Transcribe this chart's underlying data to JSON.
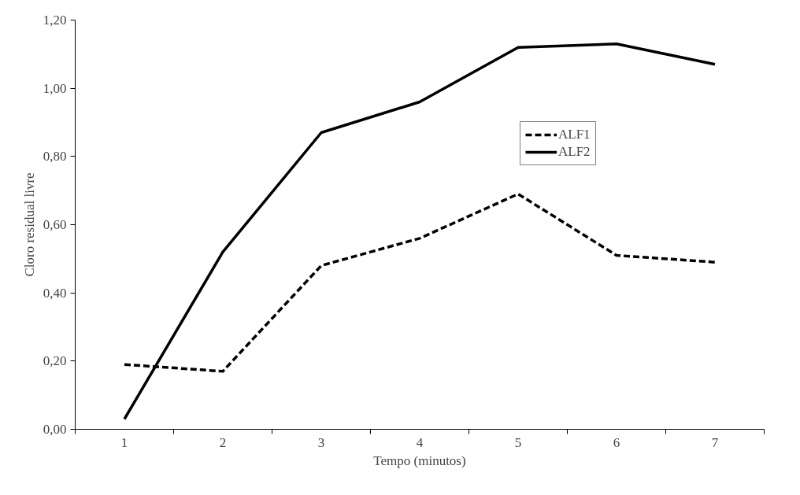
{
  "chart_data": {
    "type": "line",
    "xlabel": "Tempo (minutos)",
    "ylabel": "Cloro residual livre",
    "categories": [
      "1",
      "2",
      "3",
      "4",
      "5",
      "6",
      "7"
    ],
    "series": [
      {
        "name": "ALF1",
        "color": "#000000",
        "line_style": "dashed",
        "values": [
          0.19,
          0.17,
          0.48,
          0.56,
          0.69,
          0.51,
          0.49
        ]
      },
      {
        "name": "ALF2",
        "color": "#000000",
        "line_style": "solid",
        "values": [
          0.03,
          0.52,
          0.87,
          0.96,
          1.12,
          1.13,
          1.07
        ]
      }
    ],
    "ylim": [
      0,
      1.2
    ],
    "yticks": [
      {
        "value": 0,
        "label": "0,00"
      },
      {
        "value": 0.2,
        "label": "0,20"
      },
      {
        "value": 0.4,
        "label": "0,40"
      },
      {
        "value": 0.6,
        "label": "0,60"
      },
      {
        "value": 0.8,
        "label": "0,80"
      },
      {
        "value": 1.0,
        "label": "1,00"
      },
      {
        "value": 1.2,
        "label": "1,20"
      }
    ],
    "grid": false,
    "legend": "top right",
    "marker": "none"
  }
}
